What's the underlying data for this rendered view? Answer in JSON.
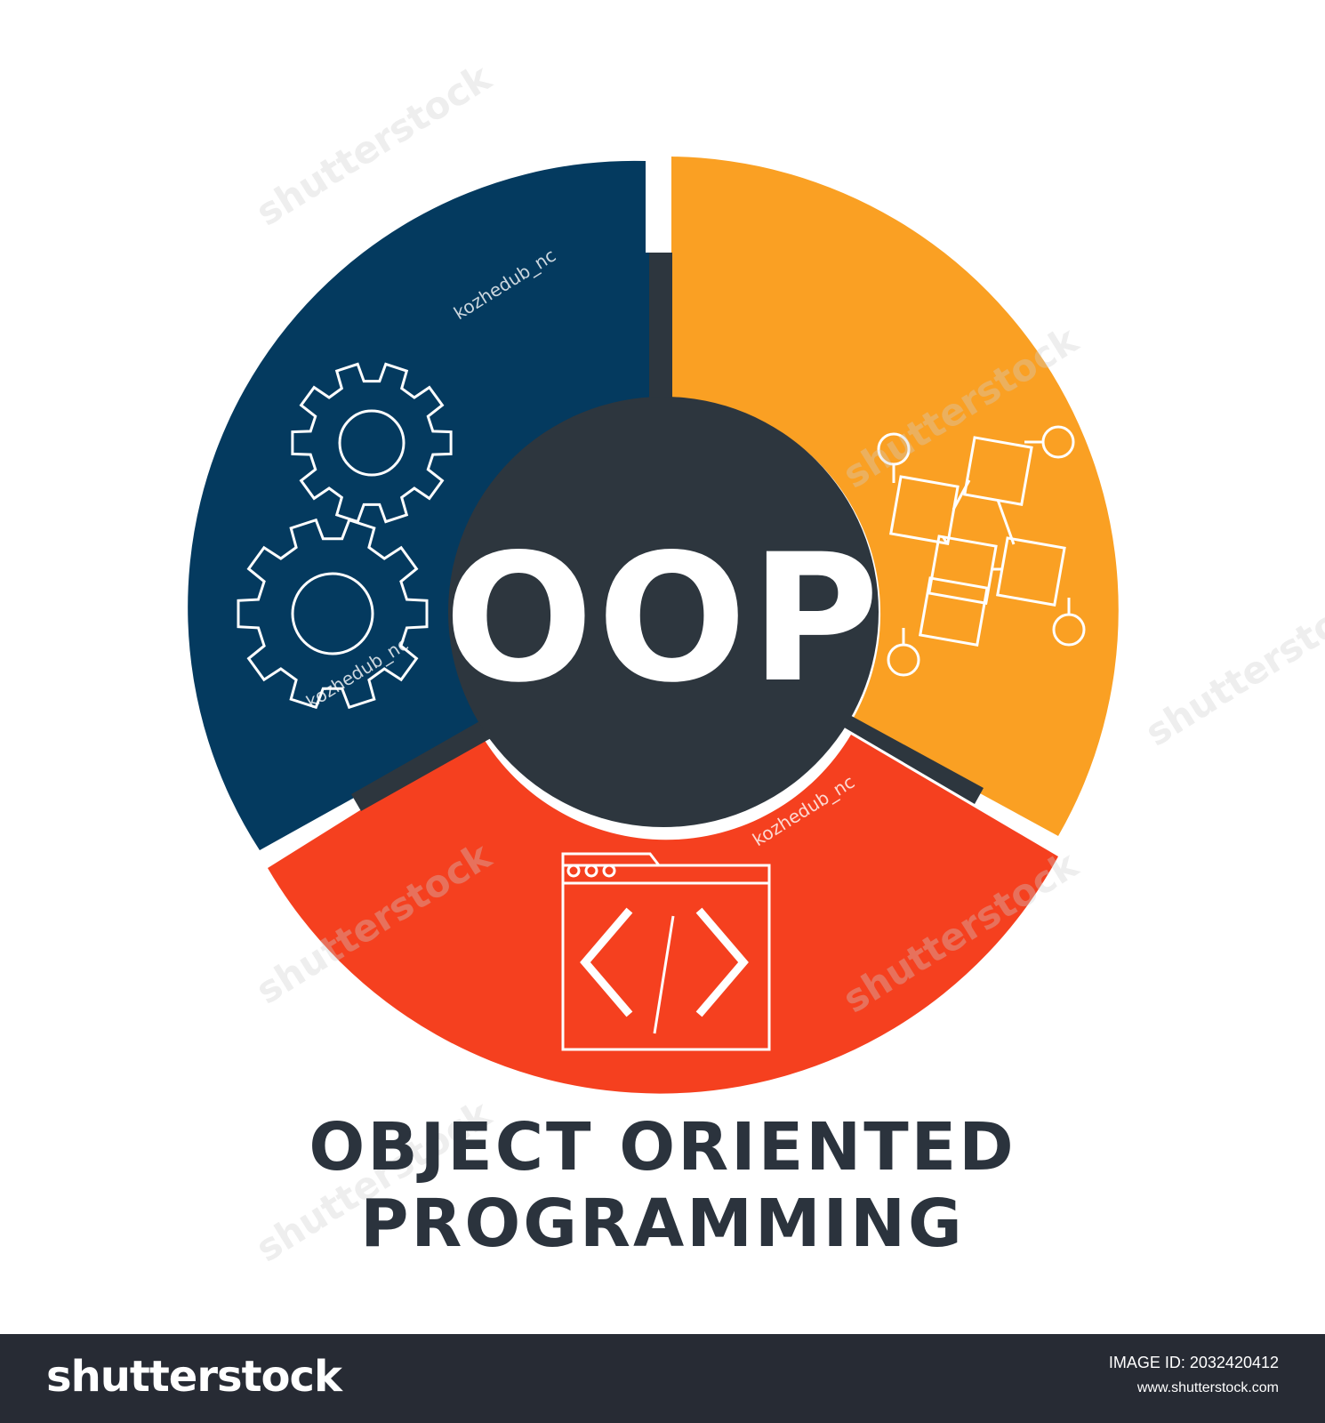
{
  "diagram": {
    "center_label": "OOP",
    "title": "OBJECT ORIENTED PROGRAMMING",
    "segments": [
      {
        "name": "blue",
        "color": "#043a5f",
        "icon": "gears-icon"
      },
      {
        "name": "orange",
        "color": "#faa023",
        "icon": "blockchain-icon"
      },
      {
        "name": "red",
        "color": "#f5401f",
        "icon": "code-window-icon"
      }
    ],
    "center_color": "#2d363e",
    "code_symbol": "</>"
  },
  "watermark": {
    "text": "shutterstock",
    "contributor": "kozhedub_nc"
  },
  "footer": {
    "brand": "shutterstock",
    "image_id": "IMAGE ID: 2032420412",
    "site": "www.shutterstock.com"
  }
}
